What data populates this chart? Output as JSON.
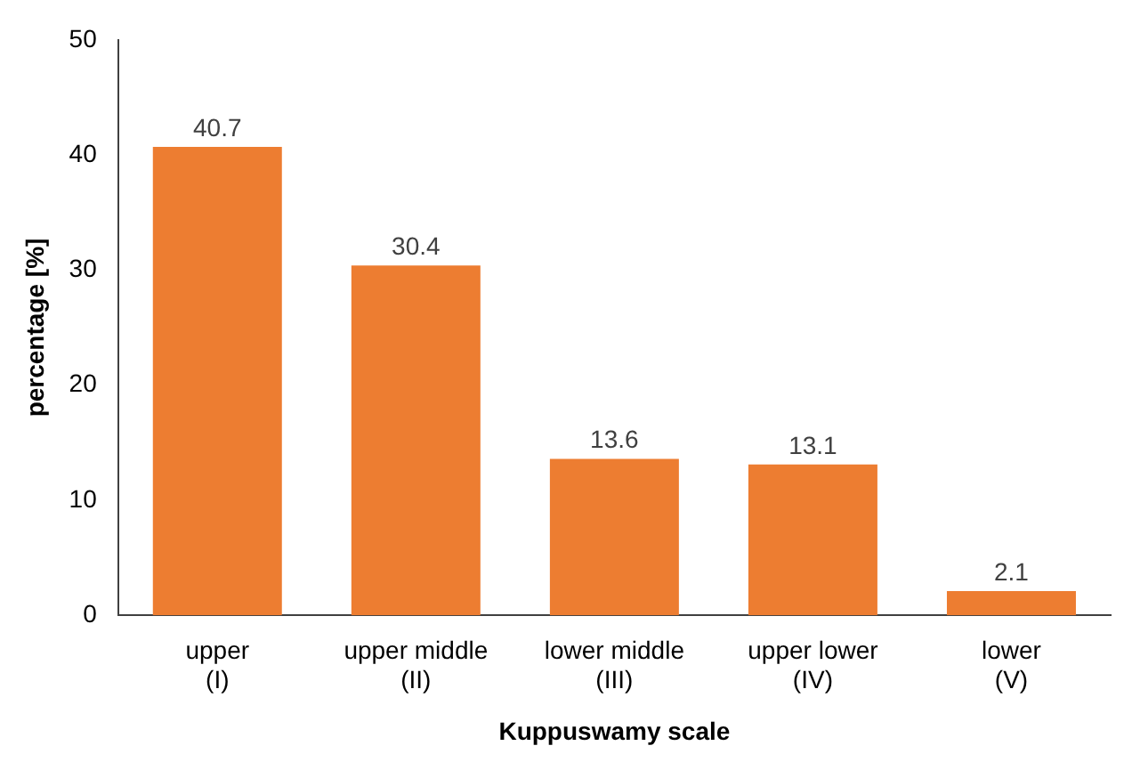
{
  "chart_data": {
    "type": "bar",
    "xlabel": "Kuppuswamy scale",
    "ylabel": "percentage [%]",
    "categories": [
      "upper\n(I)",
      "upper middle\n(II)",
      "lower middle\n(III)",
      "upper lower\n(IV)",
      "lower\n(V)"
    ],
    "values": [
      40.7,
      30.4,
      13.6,
      13.1,
      2.1
    ],
    "color": "#ed7d31",
    "ylim": [
      0,
      50
    ],
    "yticks": [
      0,
      10,
      20,
      30,
      40,
      50
    ],
    "grid": false,
    "legend": false,
    "data_labels": true
  }
}
